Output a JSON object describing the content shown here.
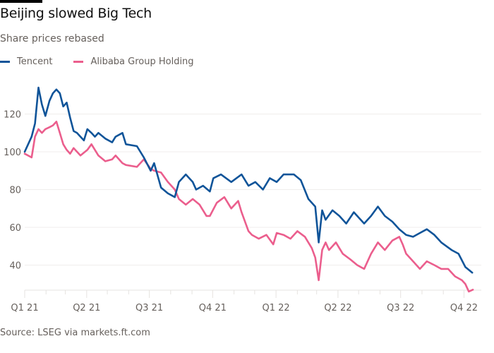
{
  "chart_data": {
    "type": "line",
    "title": "Beijing slowed Big Tech",
    "subtitle": "Share prices rebased",
    "source": "Source: LSEG via markets.ft.com",
    "legend_placement": "top-left",
    "grid": true,
    "ylim": [
      27,
      140
    ],
    "xlim": [
      "2021-01-01",
      "2022-10-20"
    ],
    "y_ticks": [
      40,
      60,
      80,
      100,
      120
    ],
    "y_tick_labels": [
      "40",
      "60",
      "80",
      "100",
      "120"
    ],
    "x_ticks": [
      {
        "date": "2021-01-01",
        "label": "Q1 21"
      },
      {
        "date": "2021-04-01",
        "label": "Q2 21"
      },
      {
        "date": "2021-07-01",
        "label": "Q3 21"
      },
      {
        "date": "2021-10-01",
        "label": "Q4 21"
      },
      {
        "date": "2022-01-01",
        "label": "Q1 22"
      },
      {
        "date": "2022-04-01",
        "label": "Q2 22"
      },
      {
        "date": "2022-07-01",
        "label": "Q3 22"
      },
      {
        "date": "2022-10-01",
        "label": "Q4 22"
      }
    ],
    "series": [
      {
        "name": "Tencent",
        "color": "#0f5499",
        "points": [
          [
            "2021-01-01",
            100
          ],
          [
            "2021-01-06",
            104
          ],
          [
            "2021-01-11",
            108
          ],
          [
            "2021-01-16",
            115
          ],
          [
            "2021-01-21",
            134
          ],
          [
            "2021-01-26",
            125
          ],
          [
            "2021-01-31",
            119
          ],
          [
            "2021-02-06",
            127
          ],
          [
            "2021-02-11",
            131
          ],
          [
            "2021-02-16",
            133
          ],
          [
            "2021-02-21",
            131
          ],
          [
            "2021-02-26",
            124
          ],
          [
            "2021-03-03",
            126
          ],
          [
            "2021-03-08",
            118
          ],
          [
            "2021-03-13",
            111
          ],
          [
            "2021-03-18",
            110
          ],
          [
            "2021-03-23",
            108
          ],
          [
            "2021-03-28",
            106
          ],
          [
            "2021-04-02",
            112
          ],
          [
            "2021-04-08",
            110
          ],
          [
            "2021-04-13",
            108
          ],
          [
            "2021-04-18",
            110
          ],
          [
            "2021-04-28",
            107
          ],
          [
            "2021-05-08",
            105
          ],
          [
            "2021-05-13",
            108
          ],
          [
            "2021-05-23",
            110
          ],
          [
            "2021-05-28",
            104
          ],
          [
            "2021-06-13",
            103
          ],
          [
            "2021-06-23",
            97
          ],
          [
            "2021-07-03",
            90
          ],
          [
            "2021-07-08",
            94
          ],
          [
            "2021-07-18",
            81
          ],
          [
            "2021-07-28",
            78
          ],
          [
            "2021-08-07",
            76
          ],
          [
            "2021-08-13",
            84
          ],
          [
            "2021-08-23",
            88
          ],
          [
            "2021-09-02",
            84
          ],
          [
            "2021-09-07",
            80
          ],
          [
            "2021-09-17",
            82
          ],
          [
            "2021-09-27",
            79
          ],
          [
            "2021-10-02",
            86
          ],
          [
            "2021-10-13",
            88
          ],
          [
            "2021-10-28",
            84
          ],
          [
            "2021-11-12",
            88
          ],
          [
            "2021-11-22",
            82
          ],
          [
            "2021-12-02",
            84
          ],
          [
            "2021-12-13",
            80
          ],
          [
            "2021-12-23",
            86
          ],
          [
            "2022-01-02",
            84
          ],
          [
            "2022-01-12",
            88
          ],
          [
            "2022-01-27",
            88
          ],
          [
            "2022-02-06",
            85
          ],
          [
            "2022-02-17",
            75
          ],
          [
            "2022-02-27",
            71
          ],
          [
            "2022-03-04",
            52
          ],
          [
            "2022-03-09",
            69
          ],
          [
            "2022-03-14",
            64
          ],
          [
            "2022-03-24",
            69
          ],
          [
            "2022-04-03",
            66
          ],
          [
            "2022-04-13",
            62
          ],
          [
            "2022-04-24",
            68
          ],
          [
            "2022-05-04",
            64
          ],
          [
            "2022-05-09",
            62
          ],
          [
            "2022-05-19",
            66
          ],
          [
            "2022-05-29",
            71
          ],
          [
            "2022-06-08",
            66
          ],
          [
            "2022-06-19",
            63
          ],
          [
            "2022-06-29",
            59
          ],
          [
            "2022-07-09",
            56
          ],
          [
            "2022-07-19",
            55
          ],
          [
            "2022-07-29",
            57
          ],
          [
            "2022-08-08",
            59
          ],
          [
            "2022-08-19",
            56
          ],
          [
            "2022-08-29",
            52
          ],
          [
            "2022-09-13",
            48
          ],
          [
            "2022-09-23",
            46
          ],
          [
            "2022-10-03",
            39
          ],
          [
            "2022-10-13",
            36
          ]
        ]
      },
      {
        "name": "Alibaba Group Holding",
        "color": "#eb5e8d",
        "points": [
          [
            "2021-01-01",
            99
          ],
          [
            "2021-01-11",
            97
          ],
          [
            "2021-01-16",
            108
          ],
          [
            "2021-01-21",
            112
          ],
          [
            "2021-01-26",
            110
          ],
          [
            "2021-01-31",
            112
          ],
          [
            "2021-02-06",
            113
          ],
          [
            "2021-02-11",
            114
          ],
          [
            "2021-02-16",
            116
          ],
          [
            "2021-02-21",
            110
          ],
          [
            "2021-02-26",
            104
          ],
          [
            "2021-03-03",
            101
          ],
          [
            "2021-03-08",
            99
          ],
          [
            "2021-03-13",
            102
          ],
          [
            "2021-03-23",
            98
          ],
          [
            "2021-04-02",
            101
          ],
          [
            "2021-04-08",
            104
          ],
          [
            "2021-04-18",
            98
          ],
          [
            "2021-04-28",
            95
          ],
          [
            "2021-05-08",
            96
          ],
          [
            "2021-05-13",
            98
          ],
          [
            "2021-05-23",
            94
          ],
          [
            "2021-05-28",
            93
          ],
          [
            "2021-06-13",
            92
          ],
          [
            "2021-06-23",
            96
          ],
          [
            "2021-07-03",
            91
          ],
          [
            "2021-07-08",
            90
          ],
          [
            "2021-07-18",
            89
          ],
          [
            "2021-07-28",
            84
          ],
          [
            "2021-08-07",
            80
          ],
          [
            "2021-08-13",
            75
          ],
          [
            "2021-08-23",
            72
          ],
          [
            "2021-09-02",
            75
          ],
          [
            "2021-09-12",
            72
          ],
          [
            "2021-09-22",
            66
          ],
          [
            "2021-09-27",
            66
          ],
          [
            "2021-10-07",
            73
          ],
          [
            "2021-10-18",
            76
          ],
          [
            "2021-10-28",
            70
          ],
          [
            "2021-11-07",
            74
          ],
          [
            "2021-11-12",
            68
          ],
          [
            "2021-11-22",
            58
          ],
          [
            "2021-11-27",
            56
          ],
          [
            "2021-12-07",
            54
          ],
          [
            "2021-12-18",
            56
          ],
          [
            "2021-12-28",
            51
          ],
          [
            "2022-01-02",
            57
          ],
          [
            "2022-01-12",
            56
          ],
          [
            "2022-01-22",
            54
          ],
          [
            "2022-02-01",
            58
          ],
          [
            "2022-02-12",
            55
          ],
          [
            "2022-02-22",
            49
          ],
          [
            "2022-02-27",
            44
          ],
          [
            "2022-03-04",
            32
          ],
          [
            "2022-03-09",
            48
          ],
          [
            "2022-03-14",
            52
          ],
          [
            "2022-03-19",
            48
          ],
          [
            "2022-03-29",
            52
          ],
          [
            "2022-04-08",
            46
          ],
          [
            "2022-04-19",
            43
          ],
          [
            "2022-04-29",
            40
          ],
          [
            "2022-05-09",
            38
          ],
          [
            "2022-05-19",
            46
          ],
          [
            "2022-05-29",
            52
          ],
          [
            "2022-06-08",
            48
          ],
          [
            "2022-06-19",
            53
          ],
          [
            "2022-06-29",
            55
          ],
          [
            "2022-07-04",
            51
          ],
          [
            "2022-07-09",
            46
          ],
          [
            "2022-07-19",
            42
          ],
          [
            "2022-07-29",
            38
          ],
          [
            "2022-08-08",
            42
          ],
          [
            "2022-08-19",
            40
          ],
          [
            "2022-08-29",
            38
          ],
          [
            "2022-09-08",
            38
          ],
          [
            "2022-09-18",
            34
          ],
          [
            "2022-09-28",
            32
          ],
          [
            "2022-10-03",
            30
          ],
          [
            "2022-10-08",
            26
          ],
          [
            "2022-10-14",
            27
          ]
        ]
      }
    ]
  }
}
